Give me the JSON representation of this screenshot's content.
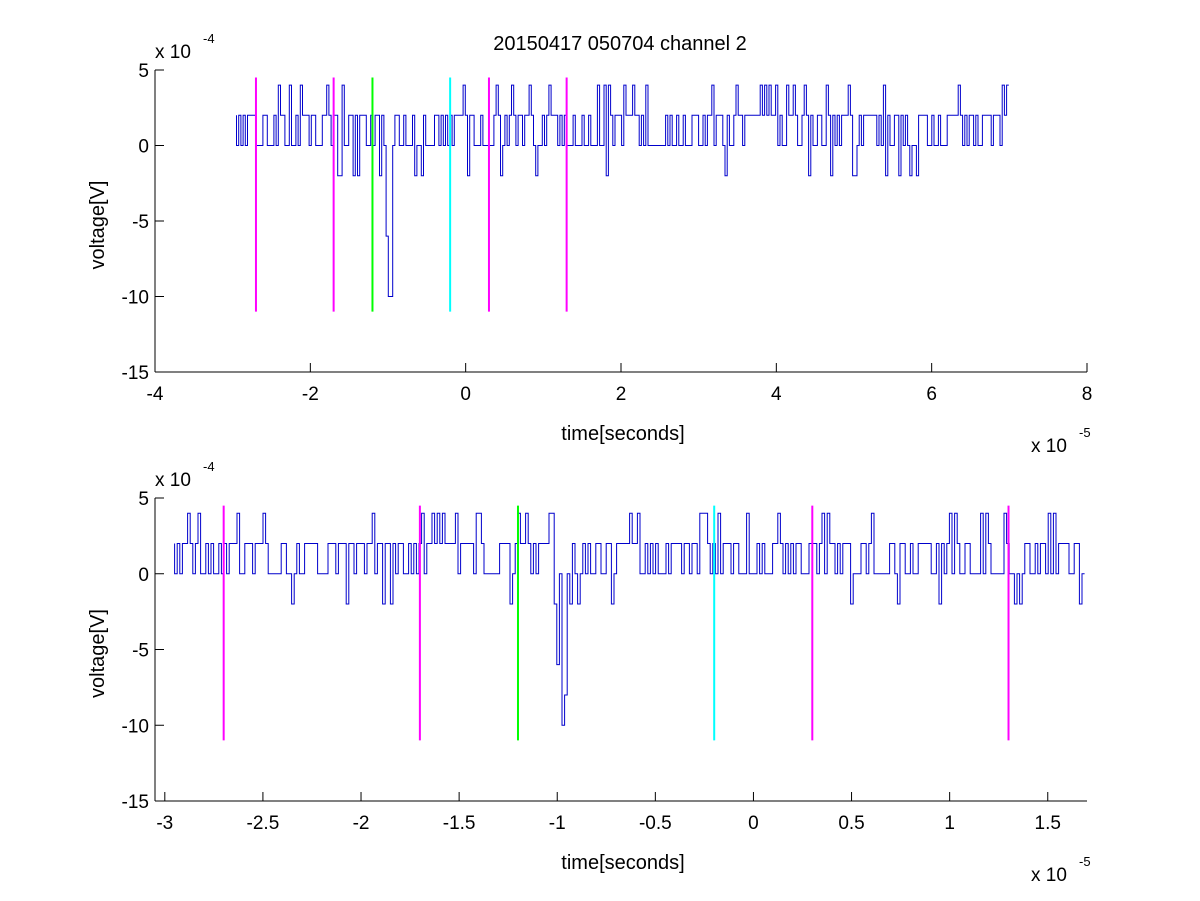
{
  "figure": {
    "title": "20150417 050704 channel 2",
    "background": "#ffffff"
  },
  "chart_data": [
    {
      "type": "line",
      "title": "20150417 050704 channel 2",
      "xlabel": "time[seconds]",
      "ylabel": "voltage[V]",
      "x_multiplier": "x 10",
      "x_exponent": "-5",
      "y_multiplier": "x 10",
      "y_exponent": "-4",
      "xlim": [
        -4,
        8
      ],
      "ylim": [
        -15,
        5
      ],
      "xticks": [
        -4,
        -2,
        0,
        2,
        4,
        6,
        8
      ],
      "xtick_labels": [
        "-4",
        "-2",
        "0",
        "2",
        "4",
        "6",
        "8"
      ],
      "yticks": [
        5,
        0,
        -5,
        -10,
        -15
      ],
      "ytick_labels": [
        "5",
        "0",
        "-5",
        "-10",
        "-15"
      ],
      "grid": false,
      "signal": {
        "color": "#0000cc",
        "x_start": -2.95,
        "x_end": 7.0,
        "baseline_levels": [
          0,
          2
        ],
        "occasional_levels": [
          4,
          -2
        ],
        "dips": [
          {
            "x": -0.98,
            "y": -10
          },
          {
            "x": -1.02,
            "y": -6
          },
          {
            "x": -1.1,
            "y": -2
          }
        ]
      },
      "markers": [
        {
          "x": -2.7,
          "y_top": 4.5,
          "y_bottom": -11,
          "color": "#ff00ff"
        },
        {
          "x": -1.7,
          "y_top": 4.5,
          "y_bottom": -11,
          "color": "#ff00ff"
        },
        {
          "x": -1.2,
          "y_top": 4.5,
          "y_bottom": -11,
          "color": "#00ff00"
        },
        {
          "x": -0.2,
          "y_top": 4.5,
          "y_bottom": -11,
          "color": "#00ffff"
        },
        {
          "x": 0.3,
          "y_top": 4.5,
          "y_bottom": -11,
          "color": "#ff00ff"
        },
        {
          "x": 1.3,
          "y_top": 4.5,
          "y_bottom": -11,
          "color": "#ff00ff"
        }
      ]
    },
    {
      "type": "line",
      "title": "",
      "xlabel": "time[seconds]",
      "ylabel": "voltage[V]",
      "x_multiplier": "x 10",
      "x_exponent": "-5",
      "y_multiplier": "x 10",
      "y_exponent": "-4",
      "xlim": [
        -3.05,
        1.7
      ],
      "ylim": [
        -15,
        5
      ],
      "xticks": [
        -3,
        -2.5,
        -2,
        -1.5,
        -1,
        -0.5,
        0,
        0.5,
        1,
        1.5
      ],
      "xtick_labels": [
        "-3",
        "-2.5",
        "-2",
        "-1.5",
        "-1",
        "-0.5",
        "0",
        "0.5",
        "1",
        "1.5"
      ],
      "yticks": [
        5,
        0,
        -5,
        -10,
        -15
      ],
      "ytick_labels": [
        "5",
        "0",
        "-5",
        "-10",
        "-15"
      ],
      "grid": false,
      "signal": {
        "color": "#0000cc",
        "x_start": -2.95,
        "x_end": 1.7,
        "baseline_levels": [
          0,
          2
        ],
        "occasional_levels": [
          4,
          -2
        ],
        "dips": [
          {
            "x": -1.02,
            "y": -2
          },
          {
            "x": -1.0,
            "y": -6
          },
          {
            "x": -0.98,
            "y": -10
          },
          {
            "x": -0.96,
            "y": -8
          },
          {
            "x": -0.94,
            "y": -2
          }
        ]
      },
      "markers": [
        {
          "x": -2.7,
          "y_top": 4.5,
          "y_bottom": -11,
          "color": "#ff00ff"
        },
        {
          "x": -1.7,
          "y_top": 4.5,
          "y_bottom": -11,
          "color": "#ff00ff"
        },
        {
          "x": -1.2,
          "y_top": 4.5,
          "y_bottom": -11,
          "color": "#00ff00"
        },
        {
          "x": -0.2,
          "y_top": 4.5,
          "y_bottom": -11,
          "color": "#00ffff"
        },
        {
          "x": 0.3,
          "y_top": 4.5,
          "y_bottom": -11,
          "color": "#ff00ff"
        },
        {
          "x": 1.3,
          "y_top": 4.5,
          "y_bottom": -11,
          "color": "#ff00ff"
        }
      ]
    }
  ]
}
